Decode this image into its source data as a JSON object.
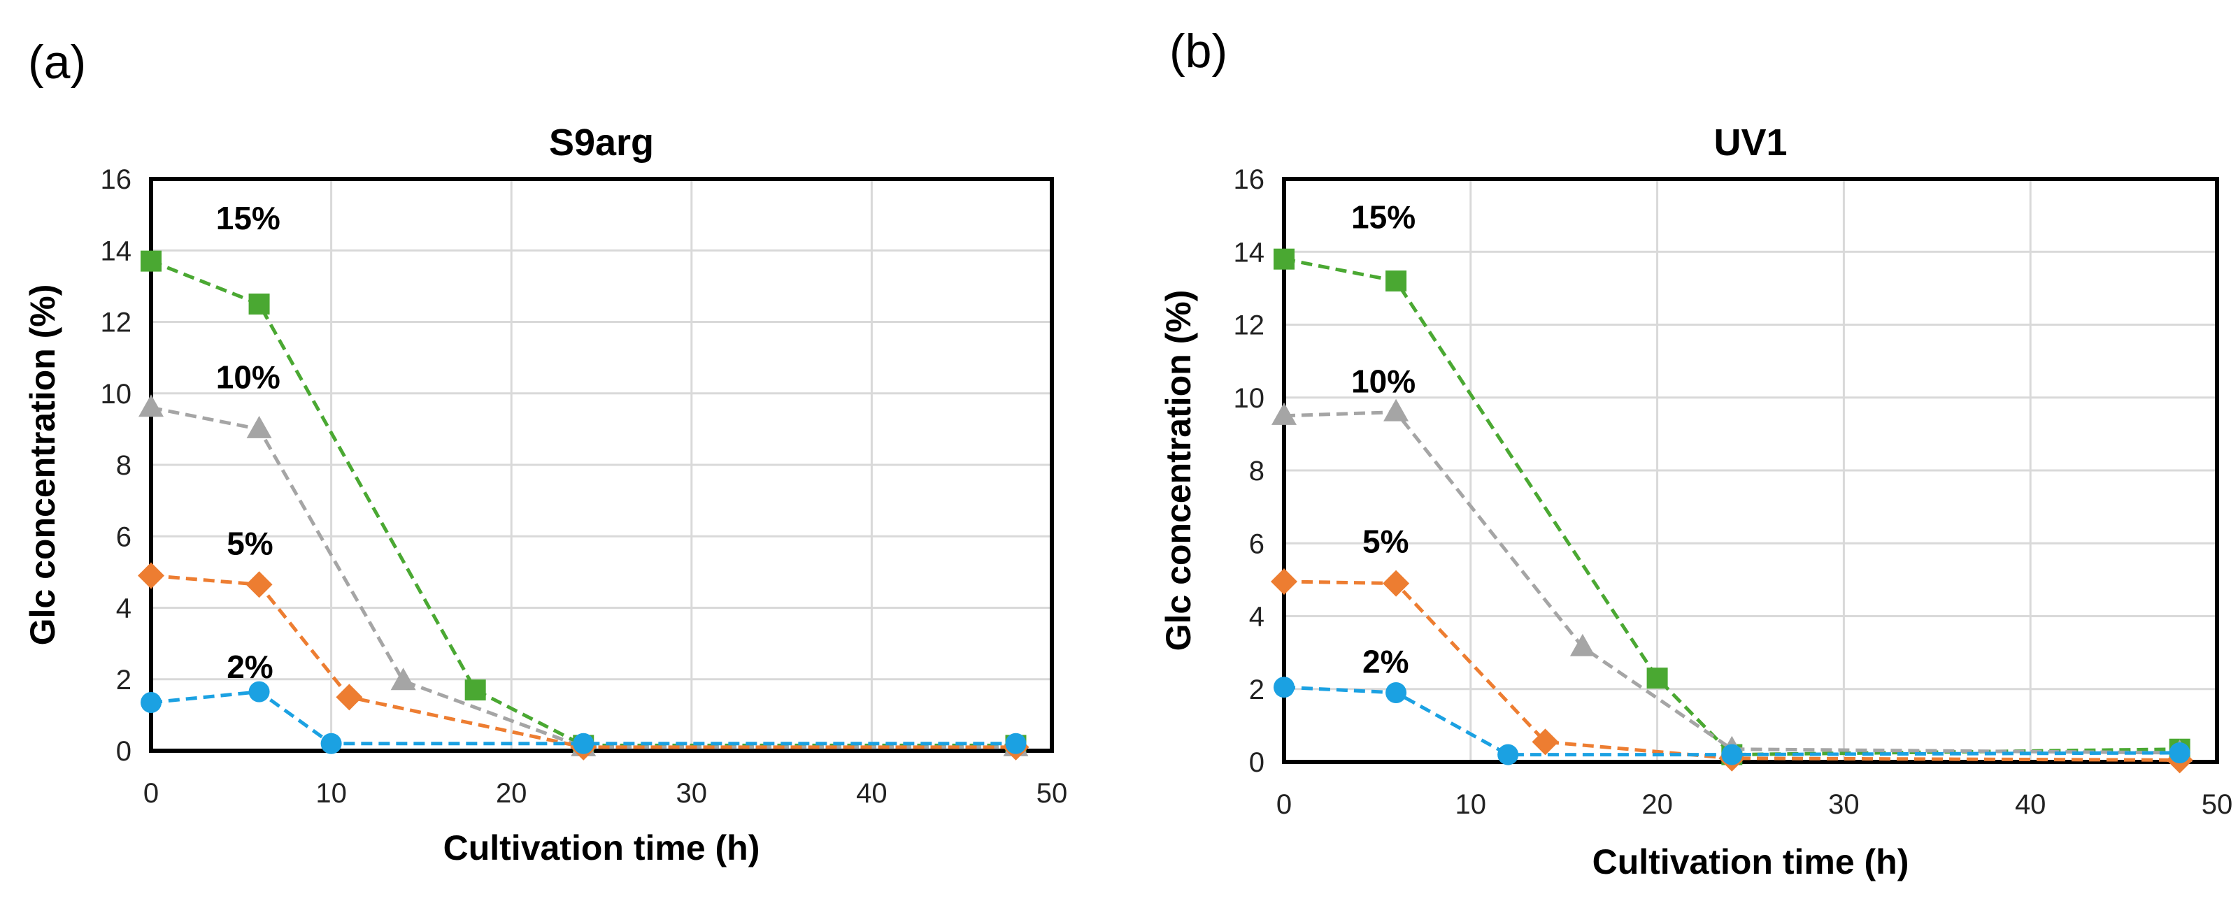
{
  "chart_data": [
    {
      "type": "line",
      "panel_label": "(a)",
      "title": "S9arg",
      "xlabel": "Cultivation time (h)",
      "ylabel": "Glc concentration (%)",
      "xlim": [
        0,
        50
      ],
      "ylim": [
        0,
        16
      ],
      "xticks": [
        0,
        10,
        20,
        30,
        40,
        50
      ],
      "yticks": [
        0,
        2,
        4,
        6,
        8,
        10,
        12,
        14,
        16
      ],
      "grid": true,
      "line_style": "dashed",
      "series": [
        {
          "name": "15%",
          "marker": "square",
          "color": "#4aa832",
          "x": [
            0,
            6,
            18,
            24,
            48
          ],
          "y": [
            13.7,
            12.5,
            1.7,
            0.15,
            0.15
          ]
        },
        {
          "name": "10%",
          "marker": "triangle",
          "color": "#a5a5a5",
          "x": [
            0,
            6,
            14,
            24,
            48
          ],
          "y": [
            9.6,
            9.0,
            1.95,
            0.1,
            0.1
          ]
        },
        {
          "name": "5%",
          "marker": "diamond",
          "color": "#ed7d31",
          "x": [
            0,
            6,
            11,
            24,
            48
          ],
          "y": [
            4.9,
            4.65,
            1.5,
            0.1,
            0.1
          ]
        },
        {
          "name": "2%",
          "marker": "circle",
          "color": "#1ba1e2",
          "x": [
            0,
            6,
            10,
            24,
            48
          ],
          "y": [
            1.35,
            1.65,
            0.2,
            0.2,
            0.2
          ]
        }
      ],
      "annotations": [
        "15%",
        "10%",
        "5%",
        "2%"
      ]
    },
    {
      "type": "line",
      "panel_label": "(b)",
      "title": "UV1",
      "xlabel": "Cultivation time (h)",
      "ylabel": "Glc concentration (%)",
      "xlim": [
        0,
        50
      ],
      "ylim": [
        0,
        16
      ],
      "xticks": [
        0,
        10,
        20,
        30,
        40,
        50
      ],
      "yticks": [
        0,
        2,
        4,
        6,
        8,
        10,
        12,
        14,
        16
      ],
      "grid": true,
      "line_style": "dashed",
      "series": [
        {
          "name": "15%",
          "marker": "square",
          "color": "#4aa832",
          "x": [
            0,
            6,
            20,
            24,
            48
          ],
          "y": [
            13.8,
            13.2,
            2.3,
            0.2,
            0.35
          ]
        },
        {
          "name": "10%",
          "marker": "triangle",
          "color": "#a5a5a5",
          "x": [
            0,
            6,
            16,
            24,
            48
          ],
          "y": [
            9.5,
            9.6,
            3.15,
            0.35,
            0.25
          ]
        },
        {
          "name": "5%",
          "marker": "diamond",
          "color": "#ed7d31",
          "x": [
            0,
            6,
            14,
            24,
            48
          ],
          "y": [
            4.95,
            4.9,
            0.55,
            0.1,
            0.05
          ]
        },
        {
          "name": "2%",
          "marker": "circle",
          "color": "#1ba1e2",
          "x": [
            0,
            6,
            12,
            24,
            48
          ],
          "y": [
            2.05,
            1.9,
            0.2,
            0.2,
            0.25
          ]
        }
      ],
      "annotations": [
        "15%",
        "10%",
        "5%",
        "2%"
      ]
    }
  ]
}
